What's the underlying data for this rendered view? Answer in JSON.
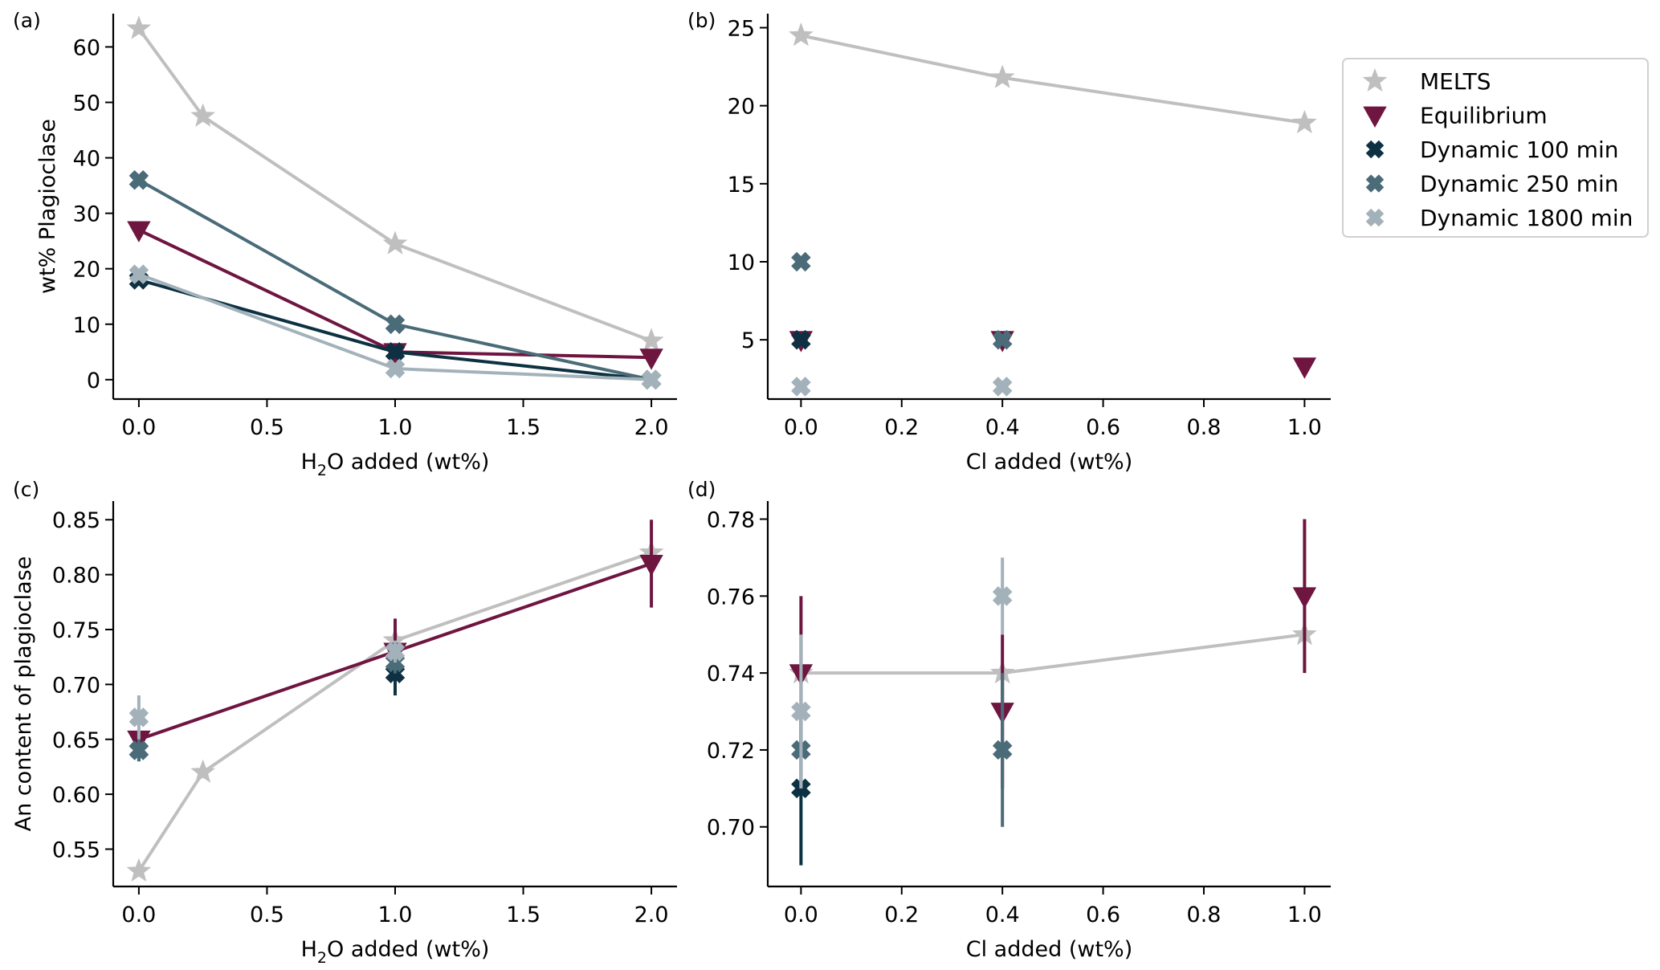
{
  "colors": {
    "MELTS": "#bfbfbf",
    "Equilibrium": "#6e1540",
    "Dynamic 100 min": "#0d3142",
    "Dynamic 250 min": "#4a6b78",
    "Dynamic 1800 min": "#a3b2ba"
  },
  "legend": {
    "placement": "right of panel (b)",
    "entries": [
      {
        "label": "MELTS",
        "marker": "star"
      },
      {
        "label": "Equilibrium",
        "marker": "triangle-down"
      },
      {
        "label": "Dynamic 100 min",
        "marker": "x-filled"
      },
      {
        "label": "Dynamic 250 min",
        "marker": "x-filled"
      },
      {
        "label": "Dynamic 1800 min",
        "marker": "x-filled"
      }
    ]
  },
  "chart_data": [
    {
      "panel": "(a)",
      "type": "line",
      "xlabel": "H2O added (wt%)",
      "xlabel_parts": {
        "pre": "H",
        "sub": "2",
        "post": "O added (wt%)"
      },
      "ylabel": "wt% Plagioclase",
      "xlim": [
        -0.1,
        2.1
      ],
      "ylim": [
        -3.5,
        66
      ],
      "xticks": [
        0.0,
        0.5,
        1.0,
        1.5,
        2.0
      ],
      "xtick_labels": [
        "0.0",
        "0.5",
        "1.0",
        "1.5",
        "2.0"
      ],
      "yticks": [
        0,
        10,
        20,
        30,
        40,
        50,
        60
      ],
      "ytick_labels": [
        "0",
        "10",
        "20",
        "30",
        "40",
        "50",
        "60"
      ],
      "grid": false,
      "series": [
        {
          "name": "MELTS",
          "marker": "star",
          "line": true,
          "x": [
            0.0,
            0.25,
            1.0,
            2.0
          ],
          "y": [
            63.3,
            47.5,
            24.5,
            7
          ]
        },
        {
          "name": "Equilibrium",
          "marker": "triangle-down",
          "line": true,
          "x": [
            0.0,
            1.0,
            2.0
          ],
          "y": [
            27,
            5,
            4
          ]
        },
        {
          "name": "Dynamic 100 min",
          "marker": "x-filled",
          "line": true,
          "x": [
            0.0,
            1.0,
            2.0
          ],
          "y": [
            18,
            5,
            0
          ]
        },
        {
          "name": "Dynamic 250 min",
          "marker": "x-filled",
          "line": true,
          "x": [
            0.0,
            1.0,
            2.0
          ],
          "y": [
            36,
            10,
            0
          ]
        },
        {
          "name": "Dynamic 1800 min",
          "marker": "x-filled",
          "line": true,
          "x": [
            0.0,
            1.0,
            2.0
          ],
          "y": [
            19,
            2,
            0
          ]
        }
      ]
    },
    {
      "panel": "(b)",
      "type": "scatter",
      "xlabel": "Cl added (wt%)",
      "ylabel": "",
      "xlim": [
        -0.066,
        1.052
      ],
      "ylim": [
        1.2,
        25.9
      ],
      "xticks": [
        0.0,
        0.2,
        0.4,
        0.6,
        0.8,
        1.0
      ],
      "xtick_labels": [
        "0.0",
        "0.2",
        "0.4",
        "0.6",
        "0.8",
        "1.0"
      ],
      "yticks": [
        5,
        10,
        15,
        20,
        25
      ],
      "ytick_labels": [
        "5",
        "10",
        "15",
        "20",
        "25"
      ],
      "grid": false,
      "series": [
        {
          "name": "MELTS",
          "marker": "star",
          "line": true,
          "x": [
            0.0,
            0.4,
            1.0
          ],
          "y": [
            24.5,
            21.8,
            18.9
          ]
        },
        {
          "name": "Equilibrium",
          "marker": "triangle-down",
          "line": false,
          "x": [
            0.0,
            0.4,
            1.0
          ],
          "y": [
            5,
            5,
            3.3
          ]
        },
        {
          "name": "Dynamic 100 min",
          "marker": "x-filled",
          "line": false,
          "x": [
            0.0
          ],
          "y": [
            5
          ]
        },
        {
          "name": "Dynamic 250 min",
          "marker": "x-filled",
          "line": false,
          "x": [
            0.0,
            0.4
          ],
          "y": [
            10,
            5
          ]
        },
        {
          "name": "Dynamic 1800 min",
          "marker": "x-filled",
          "line": false,
          "x": [
            0.0,
            0.4
          ],
          "y": [
            2,
            2
          ]
        }
      ]
    },
    {
      "panel": "(c)",
      "type": "line",
      "xlabel": "H2O added (wt%)",
      "xlabel_parts": {
        "pre": "H",
        "sub": "2",
        "post": "O added (wt%)"
      },
      "ylabel": "An content of plagioclase",
      "xlim": [
        -0.1,
        2.1
      ],
      "ylim": [
        0.516,
        0.867
      ],
      "xticks": [
        0.0,
        0.5,
        1.0,
        1.5,
        2.0
      ],
      "xtick_labels": [
        "0.0",
        "0.5",
        "1.0",
        "1.5",
        "2.0"
      ],
      "yticks": [
        0.55,
        0.6,
        0.65,
        0.7,
        0.75,
        0.8,
        0.85
      ],
      "ytick_labels": [
        "0.55",
        "0.60",
        "0.65",
        "0.70",
        "0.75",
        "0.80",
        "0.85"
      ],
      "grid": false,
      "series": [
        {
          "name": "MELTS",
          "marker": "star",
          "line": true,
          "x": [
            0.0,
            0.25,
            1.0,
            2.0
          ],
          "y": [
            0.53,
            0.62,
            0.74,
            0.82
          ]
        },
        {
          "name": "Equilibrium",
          "marker": "triangle-down",
          "line": true,
          "x": [
            0.0,
            1.0,
            2.0
          ],
          "y": [
            0.65,
            0.73,
            0.81
          ],
          "err": [
            0.0,
            0.03,
            0.04
          ]
        },
        {
          "name": "Dynamic 100 min",
          "marker": "x-filled",
          "line": false,
          "x": [
            0.0,
            1.0
          ],
          "y": [
            0.64,
            0.71
          ],
          "err": [
            0.01,
            0.02
          ]
        },
        {
          "name": "Dynamic 250 min",
          "marker": "x-filled",
          "line": false,
          "x": [
            0.0,
            1.0
          ],
          "y": [
            0.64,
            0.72
          ],
          "err": [
            0.01,
            0.01
          ]
        },
        {
          "name": "Dynamic 1800 min",
          "marker": "x-filled",
          "line": false,
          "x": [
            0.0,
            1.0
          ],
          "y": [
            0.67,
            0.73
          ],
          "err": [
            0.02,
            0.01
          ]
        }
      ]
    },
    {
      "panel": "(d)",
      "type": "line",
      "xlabel": "Cl added (wt%)",
      "ylabel": "",
      "xlim": [
        -0.066,
        1.052
      ],
      "ylim": [
        0.6845,
        0.7847
      ],
      "xticks": [
        0.0,
        0.2,
        0.4,
        0.6,
        0.8,
        1.0
      ],
      "xtick_labels": [
        "0.0",
        "0.2",
        "0.4",
        "0.6",
        "0.8",
        "1.0"
      ],
      "yticks": [
        0.7,
        0.72,
        0.74,
        0.76,
        0.78
      ],
      "ytick_labels": [
        "0.70",
        "0.72",
        "0.74",
        "0.76",
        "0.78"
      ],
      "grid": false,
      "series": [
        {
          "name": "MELTS",
          "marker": "star",
          "line": true,
          "x": [
            0.0,
            0.4,
            1.0
          ],
          "y": [
            0.74,
            0.74,
            0.75
          ]
        },
        {
          "name": "Equilibrium",
          "marker": "triangle-down",
          "line": false,
          "x": [
            0.0,
            0.4,
            1.0
          ],
          "y": [
            0.74,
            0.73,
            0.76
          ],
          "err": [
            0.02,
            0.02,
            0.02
          ]
        },
        {
          "name": "Dynamic 100 min",
          "marker": "x-filled",
          "line": false,
          "x": [
            0.0
          ],
          "y": [
            0.71
          ],
          "err": [
            0.02
          ]
        },
        {
          "name": "Dynamic 250 min",
          "marker": "x-filled",
          "line": false,
          "x": [
            0.0,
            0.4
          ],
          "y": [
            0.72,
            0.72
          ],
          "err": [
            0.01,
            0.02
          ]
        },
        {
          "name": "Dynamic 1800 min",
          "marker": "x-filled",
          "line": false,
          "x": [
            0.0,
            0.4
          ],
          "y": [
            0.73,
            0.76
          ],
          "err": [
            0.02,
            0.01
          ]
        }
      ]
    }
  ]
}
